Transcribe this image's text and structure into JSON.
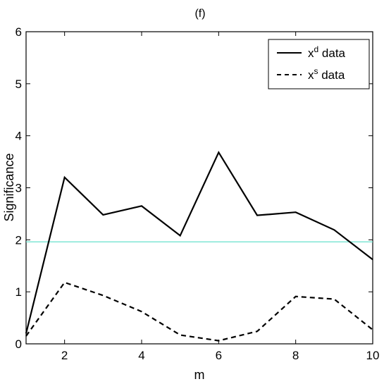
{
  "chart_data": {
    "type": "line",
    "title": "(f)",
    "xlabel": "m",
    "ylabel": "Significance",
    "xlim": [
      1,
      10
    ],
    "ylim": [
      0,
      6
    ],
    "x_ticks": [
      2,
      4,
      6,
      8,
      10
    ],
    "y_ticks": [
      0,
      1,
      2,
      3,
      4,
      5,
      6
    ],
    "grid": false,
    "legend_position": "top-right",
    "x": [
      1,
      2,
      3,
      4,
      5,
      6,
      7,
      8,
      9,
      10
    ],
    "series": [
      {
        "name": "x^d data",
        "name_base": "x",
        "name_sup": "d",
        "name_suffix": " data",
        "style": "solid",
        "color": "#000000",
        "values": [
          0.2,
          3.2,
          2.48,
          2.65,
          2.08,
          3.68,
          2.47,
          2.53,
          2.19,
          1.62
        ]
      },
      {
        "name": "x^s data",
        "name_base": "x",
        "name_sup": "s",
        "name_suffix": " data",
        "style": "dashed",
        "color": "#000000",
        "values": [
          0.15,
          1.18,
          0.93,
          0.62,
          0.17,
          0.06,
          0.24,
          0.91,
          0.86,
          0.27
        ]
      }
    ],
    "reference_line": {
      "y": 1.96,
      "color": "#66e0cc"
    }
  }
}
